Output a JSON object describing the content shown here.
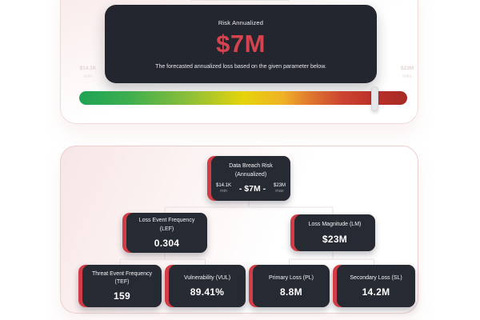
{
  "colors": {
    "accent_red": "#d5444e",
    "node_background": "#262a33",
    "node_accent_strip": "#d23c46",
    "gradient_start_green": "#1fa356",
    "gradient_mid_yellow": "#e6d40a",
    "gradient_end_red": "#a82a25",
    "card_tint_pink": "#f8e6e6"
  },
  "summary_card": {
    "title": "Risk Annualized",
    "value": "$7M",
    "description": "The forecasted annualized loss based on the given parameter below.",
    "scale_min": {
      "value": "$14.1K",
      "caption": "MIN"
    },
    "scale_max": {
      "value": "$23M",
      "caption": "MAX"
    },
    "slider": {
      "position_pct": 90
    }
  },
  "tree_card": {
    "root": {
      "title": "Data Breach Risk",
      "subtitle": "(Annualized)",
      "min_value": "$14.1K",
      "min_caption": "min",
      "mid_value": "- $7M -",
      "max_value": "$23M",
      "max_caption": "max"
    },
    "lef": {
      "title": "Loss Event Frequency (LEF)",
      "value": "0.304"
    },
    "lm": {
      "title": "Loss Magnitude (LM)",
      "value": "$23M"
    },
    "tef": {
      "title": "Threat Event Frequency (TEF)",
      "value": "159"
    },
    "vul": {
      "title": "Vulnerability (VUL)",
      "value": "89.41%"
    },
    "pl": {
      "title": "Primary Loss (PL)",
      "value": "8.8M"
    },
    "sl": {
      "title": "Secondary Loss (SL)",
      "value": "14.2M"
    }
  }
}
